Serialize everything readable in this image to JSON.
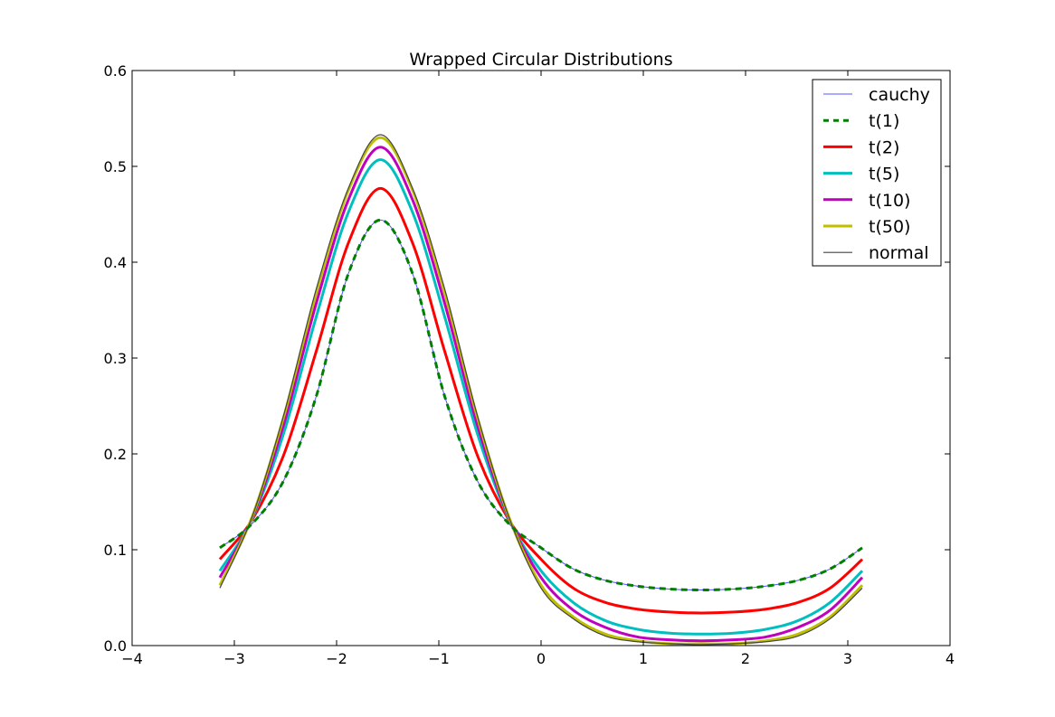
{
  "chart_data": {
    "type": "line",
    "title": "Wrapped Circular Distributions",
    "xlabel": "",
    "ylabel": "",
    "xlim": [
      -4,
      4
    ],
    "ylim": [
      0.0,
      0.6
    ],
    "x_ticks": [
      -4,
      -3,
      -2,
      -1,
      0,
      1,
      2,
      3,
      4
    ],
    "x_tick_labels": [
      "−4",
      "−3",
      "−2",
      "−1",
      "0",
      "1",
      "2",
      "3",
      "4"
    ],
    "y_ticks": [
      0.0,
      0.1,
      0.2,
      0.3,
      0.4,
      0.5,
      0.6
    ],
    "y_tick_labels": [
      "0.0",
      "0.1",
      "0.2",
      "0.3",
      "0.4",
      "0.5",
      "0.6"
    ],
    "grid": false,
    "legend_position": "top-right",
    "x": [
      -3.1416,
      -2.8274,
      -2.5133,
      -2.1991,
      -1.885,
      -1.5708,
      -1.2566,
      -0.9425,
      -0.6283,
      -0.3142,
      0.0,
      0.3142,
      0.6283,
      0.9425,
      1.2566,
      1.5708,
      1.885,
      2.1991,
      2.5133,
      2.8274,
      3.1416
    ],
    "series": [
      {
        "name": "cauchy",
        "color": "#5555ff",
        "width": 1,
        "dash": "",
        "values": [
          0.102,
          0.127,
          0.173,
          0.26,
          0.388,
          0.444,
          0.388,
          0.26,
          0.173,
          0.127,
          0.102,
          0.08,
          0.068,
          0.062,
          0.059,
          0.058,
          0.059,
          0.062,
          0.068,
          0.08,
          0.102
        ]
      },
      {
        "name": "t(1)",
        "color": "#008000",
        "width": 3,
        "dash": "7,5",
        "values": [
          0.102,
          0.127,
          0.173,
          0.26,
          0.388,
          0.444,
          0.388,
          0.26,
          0.173,
          0.127,
          0.102,
          0.08,
          0.068,
          0.062,
          0.059,
          0.058,
          0.059,
          0.062,
          0.068,
          0.08,
          0.102
        ]
      },
      {
        "name": "t(2)",
        "color": "#ff0000",
        "width": 3,
        "dash": "",
        "values": [
          0.09,
          0.131,
          0.2,
          0.307,
          0.42,
          0.477,
          0.42,
          0.307,
          0.2,
          0.131,
          0.09,
          0.06,
          0.045,
          0.038,
          0.035,
          0.034,
          0.035,
          0.038,
          0.045,
          0.06,
          0.09
        ]
      },
      {
        "name": "t(5)",
        "color": "#00bfbf",
        "width": 3,
        "dash": "",
        "values": [
          0.078,
          0.132,
          0.223,
          0.343,
          0.452,
          0.507,
          0.452,
          0.343,
          0.223,
          0.132,
          0.078,
          0.045,
          0.026,
          0.017,
          0.013,
          0.012,
          0.013,
          0.017,
          0.026,
          0.045,
          0.078
        ]
      },
      {
        "name": "t(10)",
        "color": "#bf00bf",
        "width": 3,
        "dash": "",
        "values": [
          0.071,
          0.133,
          0.232,
          0.357,
          0.465,
          0.52,
          0.465,
          0.357,
          0.232,
          0.133,
          0.071,
          0.037,
          0.019,
          0.009,
          0.006,
          0.005,
          0.006,
          0.009,
          0.019,
          0.037,
          0.071
        ]
      },
      {
        "name": "t(50)",
        "color": "#bfbf00",
        "width": 3,
        "dash": "",
        "values": [
          0.063,
          0.134,
          0.24,
          0.368,
          0.475,
          0.53,
          0.475,
          0.368,
          0.24,
          0.134,
          0.063,
          0.03,
          0.012,
          0.005,
          0.002,
          0.002,
          0.002,
          0.005,
          0.012,
          0.03,
          0.063
        ]
      },
      {
        "name": "normal",
        "color": "#444444",
        "width": 1.2,
        "dash": "",
        "values": [
          0.06,
          0.134,
          0.242,
          0.372,
          0.477,
          0.533,
          0.477,
          0.372,
          0.242,
          0.134,
          0.06,
          0.028,
          0.01,
          0.004,
          0.002,
          0.001,
          0.002,
          0.004,
          0.01,
          0.028,
          0.06
        ]
      }
    ]
  }
}
